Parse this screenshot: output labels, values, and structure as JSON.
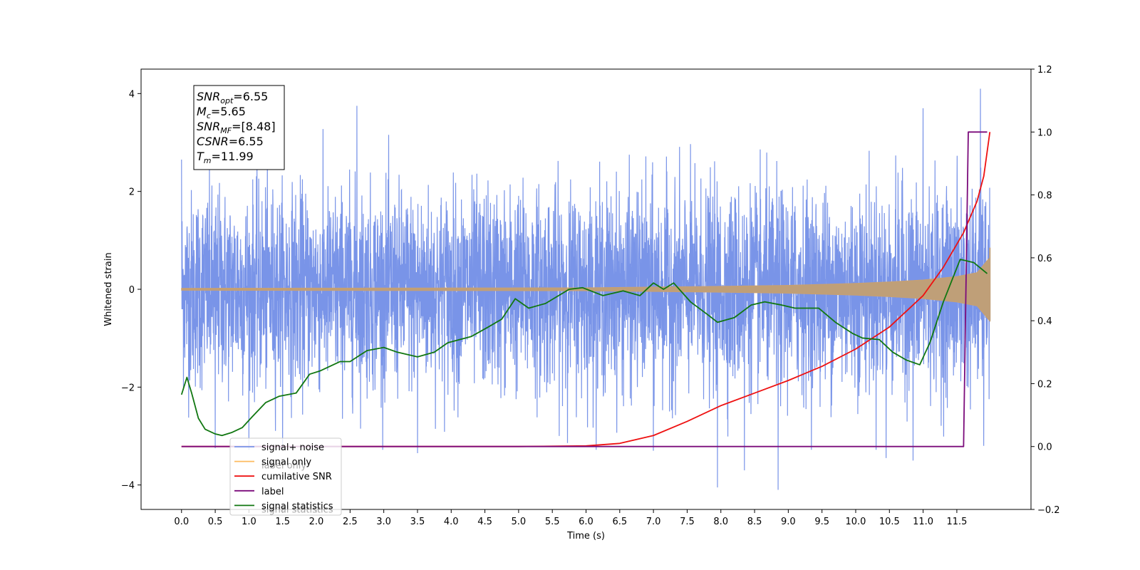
{
  "chart_data": {
    "type": "line",
    "title": "",
    "xlabel": "Time (s)",
    "ylabel": "Whitened strain",
    "xlim": [
      -0.6,
      12.6
    ],
    "ylim_left": [
      -4.5,
      4.5
    ],
    "ylim_right": [
      -0.2,
      1.2
    ],
    "x_ticks": [
      0.0,
      0.5,
      1.0,
      1.5,
      2.0,
      2.5,
      3.0,
      3.5,
      4.0,
      4.5,
      5.0,
      5.5,
      6.0,
      6.5,
      7.0,
      7.5,
      8.0,
      8.5,
      9.0,
      9.5,
      10.0,
      10.5,
      11.0,
      11.5
    ],
    "x_tick_labels": [
      "0.0",
      "0.5",
      "1.0",
      "1.5",
      "2.0",
      "2.5",
      "3.0",
      "3.5",
      "4.0",
      "4.5",
      "5.0",
      "5.5",
      "6.0",
      "6.5",
      "7.0",
      "7.5",
      "8.0",
      "8.5",
      "9.0",
      "9.5",
      "10.0",
      "10.5",
      "11.0",
      "11.5"
    ],
    "y_left_ticks": [
      4,
      2,
      0,
      -2,
      -4
    ],
    "y_left_tick_labels": [
      "4",
      "2",
      "0",
      "−2",
      "−4"
    ],
    "y_right_ticks": [
      1.2,
      1.0,
      0.8,
      0.6,
      0.4,
      0.2,
      0.0,
      -0.2
    ],
    "y_right_tick_labels": [
      "1.2",
      "1.0",
      "0.8",
      "0.6",
      "0.4",
      "0.2",
      "0.0",
      "−0.2"
    ],
    "grid": false,
    "legend_position": "bottom-left",
    "info_box": [
      {
        "main": "SNR",
        "sub": "opt",
        "value": "=6.55"
      },
      {
        "main": "M",
        "sub": "c",
        "value": "=5.65"
      },
      {
        "main": "SNR",
        "sub": "MF",
        "value": "=[8.48]"
      },
      {
        "main": "CSNR",
        "sub": "",
        "value": "=6.55"
      },
      {
        "main": "T",
        "sub": "m",
        "value": "=11.99"
      }
    ],
    "series": [
      {
        "name": "signal+ noise",
        "axis": "left",
        "color": "#7994e8",
        "style": "noise",
        "t_range": [
          0.0,
          11.99
        ],
        "typical_range": [
          -2.3,
          2.3
        ],
        "max_value": 4.1,
        "min_value": -4.1,
        "spikes": [
          [
            0.0,
            2.65
          ],
          [
            2.6,
            3.75
          ],
          [
            11.85,
            4.1
          ],
          [
            11.0,
            3.7
          ],
          [
            0.5,
            -3.25
          ],
          [
            3.5,
            -3.35
          ],
          [
            7.95,
            -4.05
          ],
          [
            8.35,
            -3.7
          ],
          [
            8.85,
            -4.1
          ],
          [
            10.45,
            -3.45
          ],
          [
            10.85,
            -3.5
          ],
          [
            11.9,
            -3.2
          ],
          [
            7.0,
            -3.3
          ]
        ]
      },
      {
        "name": "signal only",
        "axis": "left",
        "color": "#fdbb5f",
        "style": "chirp",
        "t_range": [
          0.0,
          11.99
        ],
        "envelope": [
          [
            0.0,
            0.02
          ],
          [
            6.0,
            0.03
          ],
          [
            8.0,
            0.06
          ],
          [
            9.0,
            0.08
          ],
          [
            10.0,
            0.12
          ],
          [
            10.5,
            0.15
          ],
          [
            11.0,
            0.19
          ],
          [
            11.5,
            0.26
          ],
          [
            11.8,
            0.34
          ],
          [
            11.99,
            0.65
          ]
        ],
        "end_values": [
          0.85,
          -0.65
        ]
      },
      {
        "name": "cumilative SNR",
        "axis": "right",
        "color": "#ee1111",
        "style": "line",
        "x": [
          0.0,
          5.0,
          6.0,
          6.5,
          7.0,
          7.5,
          8.0,
          8.5,
          9.0,
          9.5,
          10.0,
          10.5,
          11.0,
          11.3,
          11.6,
          11.8,
          11.9,
          11.99
        ],
        "y": [
          0.0,
          0.0,
          0.002,
          0.01,
          0.035,
          0.08,
          0.13,
          0.17,
          0.21,
          0.255,
          0.31,
          0.38,
          0.48,
          0.57,
          0.68,
          0.78,
          0.86,
          1.0
        ]
      },
      {
        "name": "label",
        "axis": "right",
        "color": "#7b0b7b",
        "style": "step",
        "x": [
          0.0,
          11.6,
          11.67,
          11.95
        ],
        "y": [
          0.0,
          0.0,
          1.0,
          1.0
        ]
      },
      {
        "name": "signal statistics",
        "axis": "right",
        "color": "#117711",
        "style": "line",
        "x": [
          0.0,
          0.08,
          0.15,
          0.25,
          0.35,
          0.5,
          0.6,
          0.75,
          0.9,
          1.05,
          1.25,
          1.45,
          1.7,
          1.9,
          2.05,
          2.35,
          2.5,
          2.75,
          3.0,
          3.2,
          3.5,
          3.75,
          3.95,
          4.3,
          4.55,
          4.75,
          4.95,
          5.15,
          5.4,
          5.75,
          5.95,
          6.25,
          6.55,
          6.8,
          7.0,
          7.15,
          7.3,
          7.55,
          7.8,
          7.95,
          8.2,
          8.45,
          8.65,
          8.9,
          9.1,
          9.45,
          9.7,
          9.95,
          10.1,
          10.35,
          10.55,
          10.75,
          10.95,
          11.1,
          11.3,
          11.55,
          11.75,
          11.95
        ],
        "y": [
          0.165,
          0.22,
          0.17,
          0.09,
          0.055,
          0.04,
          0.035,
          0.045,
          0.06,
          0.095,
          0.14,
          0.16,
          0.17,
          0.23,
          0.24,
          0.27,
          0.27,
          0.305,
          0.315,
          0.3,
          0.285,
          0.3,
          0.33,
          0.35,
          0.38,
          0.405,
          0.47,
          0.44,
          0.455,
          0.5,
          0.505,
          0.48,
          0.495,
          0.48,
          0.52,
          0.5,
          0.52,
          0.46,
          0.42,
          0.395,
          0.41,
          0.45,
          0.46,
          0.45,
          0.44,
          0.44,
          0.395,
          0.36,
          0.345,
          0.34,
          0.3,
          0.275,
          0.26,
          0.33,
          0.46,
          0.595,
          0.585,
          0.55
        ]
      }
    ],
    "legend": [
      {
        "label": "signal+ noise",
        "color": "#7994e8"
      },
      {
        "label": "signal only",
        "color": "#fdbb5f"
      },
      {
        "label": "cumilative SNR",
        "color": "#ee1111"
      },
      {
        "label": "label",
        "color": "#7b0b7b"
      },
      {
        "label": "signal statistics",
        "color": "#117711"
      }
    ],
    "legend_ghost_texts": [
      "label only",
      "signal statistics"
    ]
  }
}
